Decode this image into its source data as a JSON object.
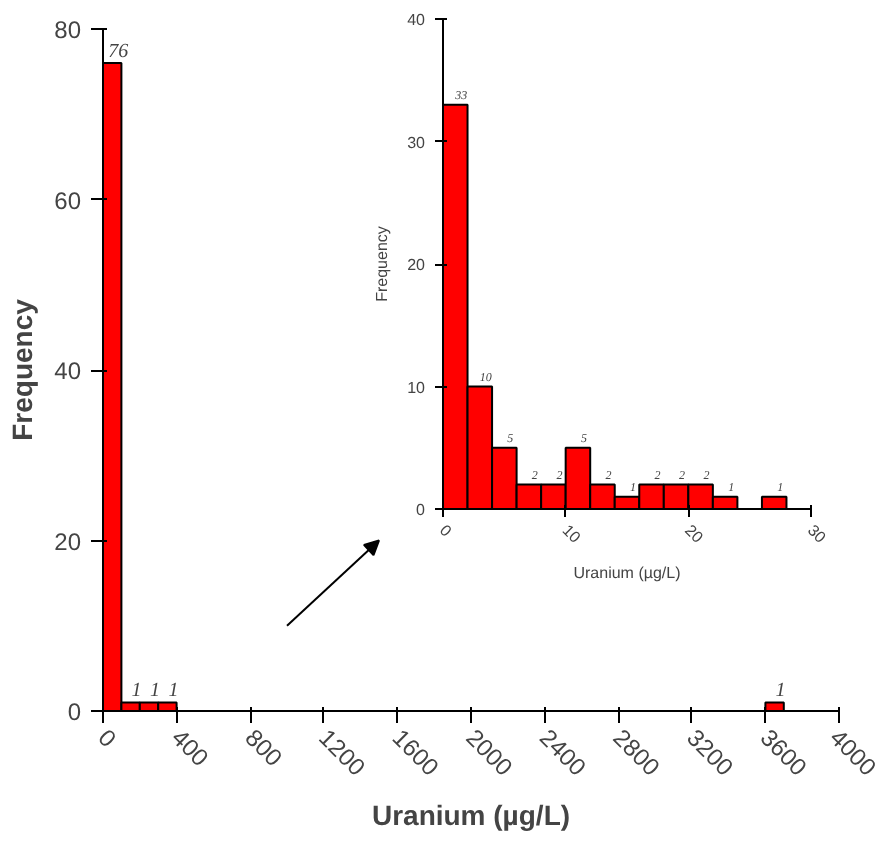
{
  "chart_data": [
    {
      "type": "histogram",
      "xlabel": "Uranium (µg/L)",
      "ylabel": "Frequency",
      "color": "#ff0000",
      "bins": [
        0,
        100,
        200,
        300,
        400,
        500,
        600,
        700,
        800,
        900,
        1000,
        1100,
        1200,
        1300,
        1400,
        1500,
        1600,
        1700,
        1800,
        1900,
        2000,
        2100,
        2200,
        2300,
        2400,
        2500,
        2600,
        2700,
        2800,
        2900,
        3000,
        3100,
        3200,
        3300,
        3400,
        3500,
        3600,
        3700
      ],
      "values": [
        76,
        1,
        1,
        1,
        0,
        0,
        0,
        0,
        0,
        0,
        0,
        0,
        0,
        0,
        0,
        0,
        0,
        0,
        0,
        0,
        0,
        0,
        0,
        0,
        0,
        0,
        0,
        0,
        0,
        0,
        0,
        0,
        0,
        0,
        0,
        0,
        1
      ],
      "value_labels": [
        "76",
        "1",
        "1",
        "1",
        null,
        null,
        null,
        null,
        null,
        null,
        null,
        null,
        null,
        null,
        null,
        null,
        null,
        null,
        null,
        null,
        null,
        null,
        null,
        null,
        null,
        null,
        null,
        null,
        null,
        null,
        null,
        null,
        null,
        null,
        null,
        null,
        "1"
      ],
      "xlim": [
        0,
        4000
      ],
      "xticks": [
        0,
        400,
        800,
        1200,
        1600,
        2000,
        2400,
        2800,
        3200,
        3600,
        4000
      ],
      "ylim": [
        0,
        80
      ],
      "yticks": [
        0,
        20,
        40,
        60,
        80
      ],
      "grid": false
    },
    {
      "type": "histogram",
      "xlabel": "Uranium (µg/L)",
      "ylabel": "Frequency",
      "color": "#ff0000",
      "bins": [
        0,
        2,
        4,
        6,
        8,
        10,
        12,
        14,
        16,
        18,
        20,
        22,
        24,
        26,
        28
      ],
      "values": [
        33,
        10,
        5,
        2,
        2,
        5,
        2,
        1,
        2,
        2,
        2,
        1,
        0,
        1
      ],
      "value_labels": [
        "33",
        "10",
        "5",
        "2",
        "2",
        "5",
        "2",
        "1",
        "2",
        "2",
        "2",
        "1",
        null,
        "1"
      ],
      "xlim": [
        0,
        30
      ],
      "xticks": [
        0,
        10,
        20,
        30
      ],
      "ylim": [
        0,
        40
      ],
      "yticks": [
        0,
        10,
        20,
        30,
        40
      ],
      "grid": false
    }
  ]
}
